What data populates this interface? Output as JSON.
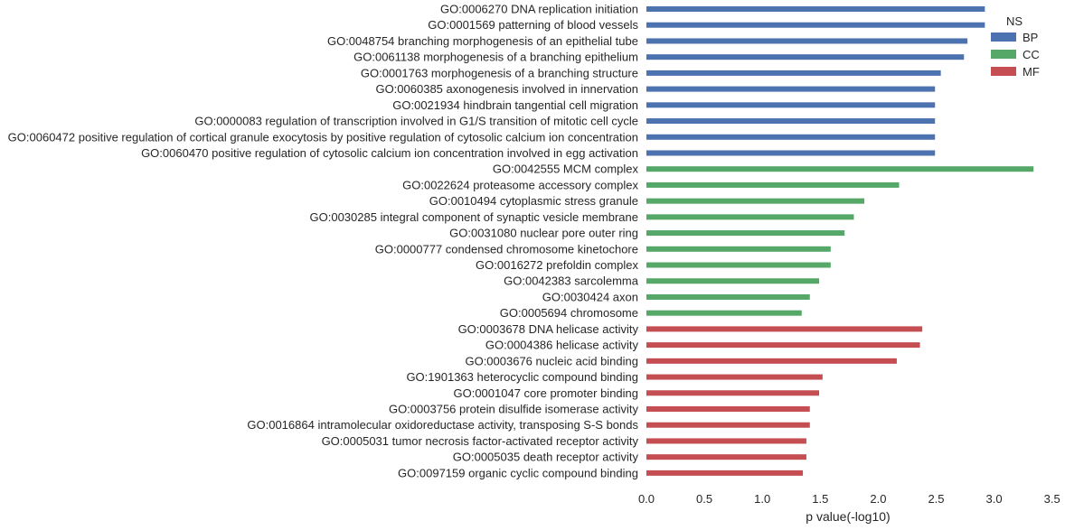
{
  "chart_data": {
    "type": "bar",
    "orientation": "horizontal",
    "xlabel": "p value(-log10)",
    "xlim": [
      0,
      3.5
    ],
    "xticks": [
      "0.0",
      "0.5",
      "1.0",
      "1.5",
      "2.0",
      "2.5",
      "3.0",
      "3.5"
    ],
    "grid": false,
    "legend": {
      "title": "NS",
      "placement": "top-right",
      "entries": [
        {
          "name": "BP",
          "color": "#4c72b0"
        },
        {
          "name": "CC",
          "color": "#55a868"
        },
        {
          "name": "MF",
          "color": "#c44e52"
        }
      ]
    },
    "categories": [
      {
        "label": "GO:0006270 DNA replication initiation",
        "value": 2.92,
        "ns": "BP"
      },
      {
        "label": "GO:0001569 patterning of blood vessels",
        "value": 2.92,
        "ns": "BP"
      },
      {
        "label": "GO:0048754 branching morphogenesis of an epithelial tube",
        "value": 2.77,
        "ns": "BP"
      },
      {
        "label": "GO:0061138 morphogenesis of a branching epithelium",
        "value": 2.74,
        "ns": "BP"
      },
      {
        "label": "GO:0001763 morphogenesis of a branching structure",
        "value": 2.54,
        "ns": "BP"
      },
      {
        "label": "GO:0060385 axonogenesis involved in innervation",
        "value": 2.49,
        "ns": "BP"
      },
      {
        "label": "GO:0021934 hindbrain tangential cell migration",
        "value": 2.49,
        "ns": "BP"
      },
      {
        "label": "GO:0000083 regulation of transcription involved in G1/S transition of mitotic cell cycle",
        "value": 2.49,
        "ns": "BP"
      },
      {
        "label": "GO:0060472 positive regulation of cortical granule exocytosis by positive regulation of cytosolic calcium ion concentration",
        "value": 2.49,
        "ns": "BP"
      },
      {
        "label": "GO:0060470 positive regulation of cytosolic calcium ion concentration involved in egg activation",
        "value": 2.49,
        "ns": "BP"
      },
      {
        "label": "GO:0042555 MCM complex",
        "value": 3.34,
        "ns": "CC"
      },
      {
        "label": "GO:0022624 proteasome accessory complex",
        "value": 2.18,
        "ns": "CC"
      },
      {
        "label": "GO:0010494 cytoplasmic stress granule",
        "value": 1.88,
        "ns": "CC"
      },
      {
        "label": "GO:0030285 integral component of synaptic vesicle membrane",
        "value": 1.79,
        "ns": "CC"
      },
      {
        "label": "GO:0031080 nuclear pore outer ring",
        "value": 1.71,
        "ns": "CC"
      },
      {
        "label": "GO:0000777 condensed chromosome kinetochore",
        "value": 1.59,
        "ns": "CC"
      },
      {
        "label": "GO:0016272 prefoldin complex",
        "value": 1.59,
        "ns": "CC"
      },
      {
        "label": "GO:0042383 sarcolemma",
        "value": 1.49,
        "ns": "CC"
      },
      {
        "label": "GO:0030424 axon",
        "value": 1.41,
        "ns": "CC"
      },
      {
        "label": "GO:0005694 chromosome",
        "value": 1.34,
        "ns": "CC"
      },
      {
        "label": "GO:0003678 DNA helicase activity",
        "value": 2.38,
        "ns": "MF"
      },
      {
        "label": "GO:0004386 helicase activity",
        "value": 2.36,
        "ns": "MF"
      },
      {
        "label": "GO:0003676 nucleic acid binding",
        "value": 2.16,
        "ns": "MF"
      },
      {
        "label": "GO:1901363 heterocyclic compound binding",
        "value": 1.52,
        "ns": "MF"
      },
      {
        "label": "GO:0001047 core promoter binding",
        "value": 1.49,
        "ns": "MF"
      },
      {
        "label": "GO:0003756 protein disulfide isomerase activity",
        "value": 1.41,
        "ns": "MF"
      },
      {
        "label": "GO:0016864 intramolecular oxidoreductase activity, transposing S-S bonds",
        "value": 1.41,
        "ns": "MF"
      },
      {
        "label": "GO:0005031 tumor necrosis factor-activated receptor activity",
        "value": 1.38,
        "ns": "MF"
      },
      {
        "label": "GO:0005035 death receptor activity",
        "value": 1.38,
        "ns": "MF"
      },
      {
        "label": "GO:0097159 organic cyclic compound binding",
        "value": 1.35,
        "ns": "MF"
      }
    ]
  }
}
